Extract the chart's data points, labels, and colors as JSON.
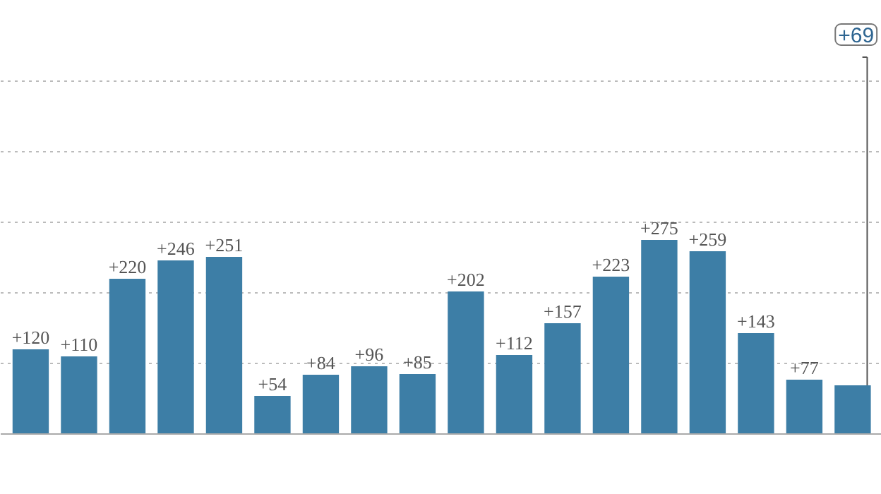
{
  "chart_data": {
    "type": "bar",
    "categories": [
      null,
      null,
      null,
      null,
      null,
      null,
      null,
      null,
      null,
      null,
      null,
      null,
      null,
      null,
      null,
      null,
      null,
      null
    ],
    "values": [
      120,
      110,
      220,
      246,
      251,
      54,
      84,
      96,
      85,
      202,
      112,
      157,
      223,
      275,
      259,
      143,
      77,
      69
    ],
    "color": "#3d7ea6",
    "value_labels": [
      "+120",
      "+110",
      "+220",
      "+246",
      "+251",
      "+54",
      "+84",
      "+96",
      "+85",
      "+202",
      "+112",
      "+157",
      "+223",
      "+275",
      "+259",
      "+143",
      "+77",
      null
    ],
    "annotations": [
      {
        "text": "+69",
        "y": 69
      }
    ],
    "ylim": [
      -86,
      614
    ],
    "yticks": [
      {
        "value": 100,
        "label": null
      },
      {
        "value": 200,
        "label": null
      },
      {
        "value": 300,
        "label": null
      },
      {
        "value": 400,
        "label": null
      },
      {
        "value": 500,
        "label": null
      }
    ],
    "grid": "y",
    "tick_labels": false
  }
}
